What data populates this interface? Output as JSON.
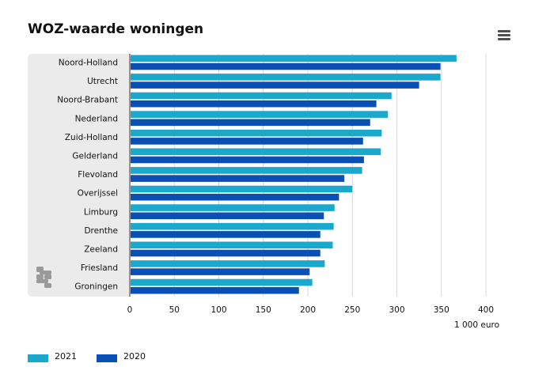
{
  "colors": {
    "series_2021": "#1aa8cc",
    "series_2020": "#0a50b4",
    "plot_background": "#ebebeb",
    "grid": "#d9d9d9",
    "logo": "#9a9a9a"
  },
  "menu": {
    "icon": "hamburger-menu-icon"
  },
  "logo": {
    "icon": "cbs-logo"
  },
  "chart_data": {
    "type": "bar",
    "orientation": "horizontal",
    "title": "WOZ-waarde woningen",
    "xlabel": "1 000 euro",
    "ylabel": "",
    "xlim": [
      0,
      400
    ],
    "x_ticks": [
      0,
      50,
      100,
      150,
      200,
      250,
      300,
      350,
      400
    ],
    "grid": true,
    "legend_position": "bottom-left",
    "categories": [
      "Noord-Holland",
      "Utrecht",
      "Noord-Brabant",
      "Nederland",
      "Zuid-Holland",
      "Gelderland",
      "Flevoland",
      "Overijssel",
      "Limburg",
      "Drenthe",
      "Zeeland",
      "Friesland",
      "Groningen"
    ],
    "series": [
      {
        "name": "2021",
        "values": [
          367,
          349,
          294,
          290,
          283,
          282,
          261,
          250,
          230,
          229,
          228,
          219,
          205
        ]
      },
      {
        "name": "2020",
        "values": [
          349,
          325,
          277,
          270,
          262,
          263,
          241,
          235,
          218,
          214,
          214,
          202,
          190
        ]
      }
    ]
  }
}
